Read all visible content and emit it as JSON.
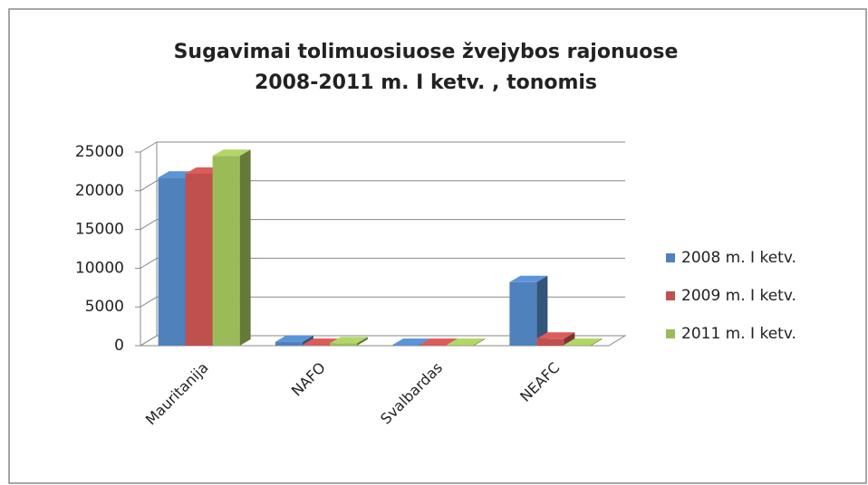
{
  "chart_data": {
    "type": "bar3d",
    "title": [
      "Sugavimai tolimuosiuose  žvejybos rajonuose",
      "2008-2011 m. I ketv. , tonomis"
    ],
    "categories": [
      "Mauritanija",
      "NAFO",
      "Svalbardas",
      "NEAFC"
    ],
    "series": [
      {
        "name": "2008 m. I ketv.",
        "color": "#4f81bd",
        "values": [
          21700,
          500,
          100,
          8200
        ]
      },
      {
        "name": "2009 m. I ketv.",
        "color": "#c0504d",
        "values": [
          22200,
          100,
          100,
          900
        ]
      },
      {
        "name": "2011 m. I ketv.",
        "color": "#9bbb59",
        "values": [
          24500,
          300,
          100,
          100
        ]
      }
    ],
    "ylim": [
      0,
      25000
    ],
    "yticks": [
      0,
      5000,
      10000,
      15000,
      20000,
      25000
    ],
    "grid": true,
    "legend": "right"
  }
}
